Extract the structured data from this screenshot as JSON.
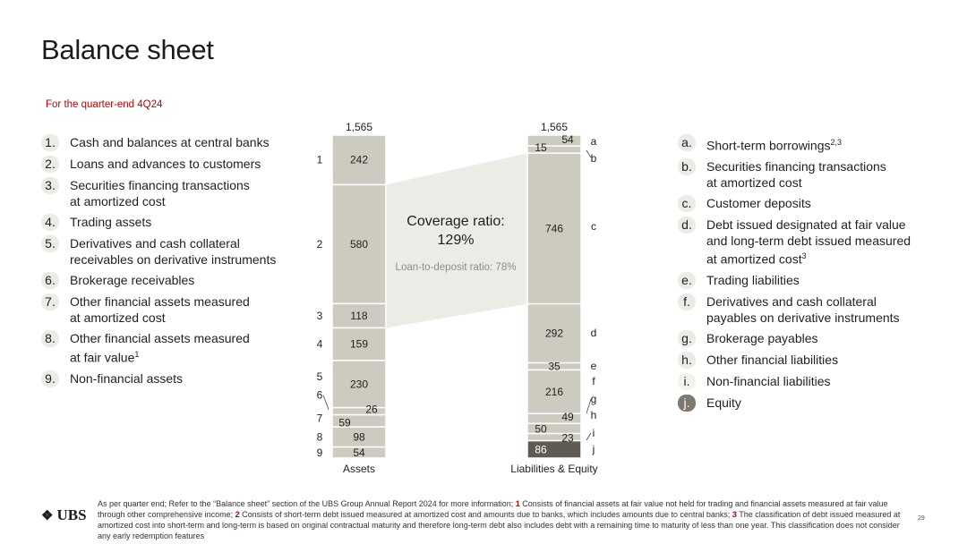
{
  "page": {
    "title": "Balance sheet",
    "subtitle": "For the quarter-end 4Q24",
    "page_number": "29"
  },
  "assets_legend": [
    {
      "num": "1.",
      "lines": [
        "Cash and balances at central banks"
      ]
    },
    {
      "num": "2.",
      "lines": [
        "Loans and advances to customers"
      ]
    },
    {
      "num": "3.",
      "lines": [
        "Securities financing transactions",
        "at amortized cost"
      ]
    },
    {
      "num": "4.",
      "lines": [
        "Trading assets"
      ]
    },
    {
      "num": "5.",
      "lines": [
        "Derivatives and cash collateral",
        "receivables on derivative instruments"
      ]
    },
    {
      "num": "6.",
      "lines": [
        "Brokerage receivables"
      ]
    },
    {
      "num": "7.",
      "lines": [
        "Other financial assets measured",
        "at amortized cost"
      ]
    },
    {
      "num": "8.",
      "lines": [
        "Other financial assets measured",
        "at fair value"
      ],
      "sup": "1"
    },
    {
      "num": "9.",
      "lines": [
        "Non-financial assets"
      ]
    }
  ],
  "liabilities_legend": [
    {
      "num": "a.",
      "lines": [
        "Short-term borrowings"
      ],
      "sup": "2,3"
    },
    {
      "num": "b.",
      "lines": [
        "Securities financing transactions",
        "at amortized cost"
      ]
    },
    {
      "num": "c.",
      "lines": [
        "Customer deposits"
      ]
    },
    {
      "num": "d.",
      "lines": [
        "Debt issued designated at fair value",
        "and long-term debt issued measured",
        "at amortized cost"
      ],
      "sup": "3"
    },
    {
      "num": "e.",
      "lines": [
        "Trading liabilities"
      ]
    },
    {
      "num": "f.",
      "lines": [
        "Derivatives and cash collateral",
        "payables on derivative instruments"
      ]
    },
    {
      "num": "g.",
      "lines": [
        "Brokerage payables"
      ]
    },
    {
      "num": "h.",
      "lines": [
        "Other financial liabilities"
      ]
    },
    {
      "num": "i.",
      "lines": [
        "Non-financial liabilities"
      ]
    },
    {
      "num": "j.",
      "lines": [
        "Equity"
      ]
    }
  ],
  "chart_data": {
    "type": "stacked-bar",
    "categories": [
      "Assets",
      "Liabilities & Equity"
    ],
    "totals": [
      "1,565",
      "1,565"
    ],
    "assets": [
      {
        "id": "1",
        "value": 242
      },
      {
        "id": "2",
        "value": 580
      },
      {
        "id": "3",
        "value": 118
      },
      {
        "id": "4",
        "value": 159
      },
      {
        "id": "5",
        "value": 230
      },
      {
        "id": "6",
        "value": 26
      },
      {
        "id": "7",
        "value": 59
      },
      {
        "id": "8",
        "value": 98
      },
      {
        "id": "9",
        "value": 54
      }
    ],
    "liabilities": [
      {
        "id": "a",
        "value": 54
      },
      {
        "id": "b",
        "value": 15
      },
      {
        "id": "c",
        "value": 746
      },
      {
        "id": "d",
        "value": 292
      },
      {
        "id": "e",
        "value": 35
      },
      {
        "id": "f",
        "value": 216
      },
      {
        "id": "g",
        "value": 49
      },
      {
        "id": "h",
        "value": 50
      },
      {
        "id": "i",
        "value": 23
      },
      {
        "id": "j",
        "value": 86
      }
    ],
    "coverage_label": "Coverage ratio:",
    "coverage_value": "129%",
    "ltd_label": "Loan-to-deposit ratio: 78%",
    "colors": {
      "segment": "#cdcabf",
      "equity": "#5f5a53",
      "bridge": "#ecebe6",
      "separator": "#ffffff",
      "text": "#1f1f1f"
    }
  },
  "footnote": {
    "intro": "As per quarter end; Refer to the “Balance sheet” section of the UBS Group Annual Report 2024 for more information; ",
    "n1": "1",
    "t1": " Consists of financial assets at fair value not held for trading and financial assets measured at fair value through other comprehensive income; ",
    "n2": "2",
    "t2": " Consists of short-term debt issued measured at amortized cost and amounts due to banks, which includes amounts due to central banks; ",
    "n3": "3",
    "t3": " The classification of debt issued measured at amortized cost into short-term and long-term is based on original contractual maturity and therefore long-term debt also includes debt with a remaining time to maturity of less than one year. This classification does not consider any early redemption features"
  },
  "logo": {
    "keys": "❖",
    "text": "UBS"
  }
}
